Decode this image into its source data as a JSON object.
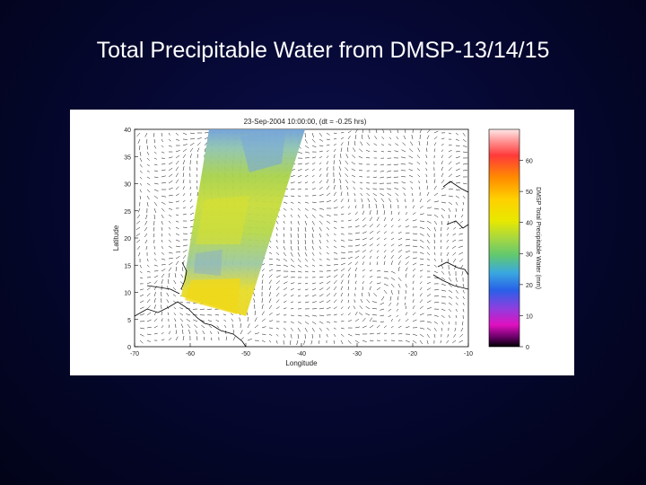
{
  "slide": {
    "title": "Total Precipitable Water from DMSP-13/14/15"
  },
  "figure": {
    "plot_title": "23-Sep-2004 10:00:00, (dt = -0.25 hrs)",
    "xlabel": "Longitude",
    "ylabel": "Latitude",
    "xticks": [
      "-70",
      "-60",
      "-50",
      "-40",
      "-30",
      "-20",
      "-10"
    ],
    "yticks": [
      "40",
      "35",
      "30",
      "25",
      "20",
      "15",
      "10",
      "5",
      "0"
    ],
    "colorbar_label": "DMSP Total Precipitable Water (mm)",
    "colorbar_ticks": [
      "60",
      "50",
      "40",
      "30",
      "20",
      "10",
      "0"
    ],
    "colors": {
      "swath_high": "#e8d020",
      "swath_mid": "#9ccc3a",
      "swath_low": "#6fa0d8",
      "coastline": "#000000",
      "wind_vectors": "#111111"
    }
  }
}
